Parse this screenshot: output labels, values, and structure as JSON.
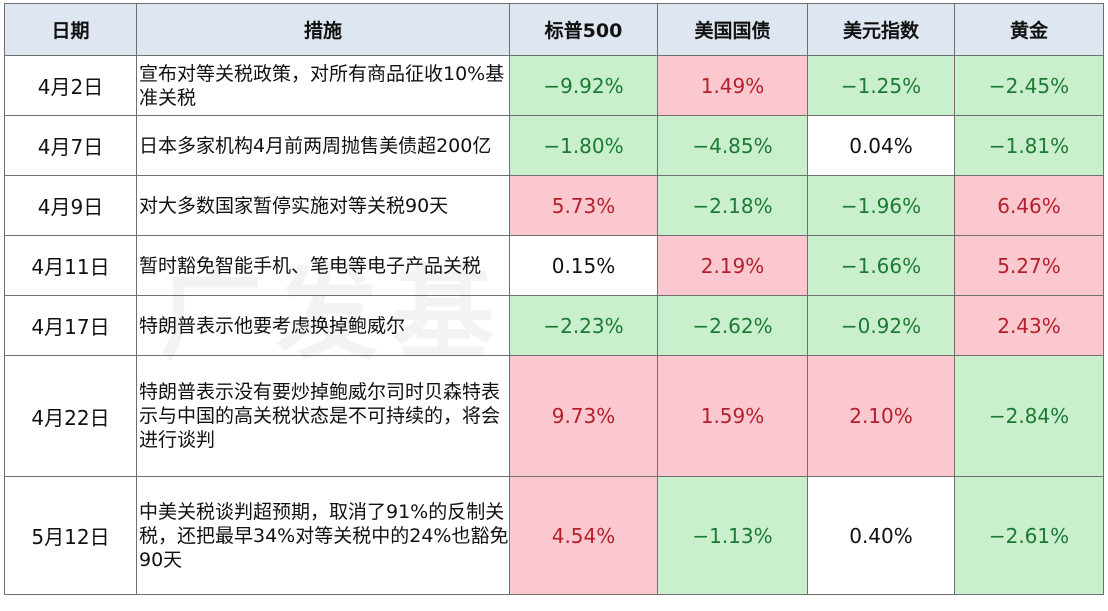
{
  "colors": {
    "header_bg": "#dde6f1",
    "positive_bg": "#fcc8cf",
    "positive_text": "#b3202c",
    "negative_bg": "#c9efcd",
    "negative_text": "#1c7a34"
  },
  "watermark": "广发基金投顾",
  "headers": [
    "日期",
    "措施",
    "标普500",
    "美国国债",
    "美元指数",
    "黄金"
  ],
  "rows": [
    {
      "date": "4月2日",
      "measure": "宣布对等关税政策，对所有商品征收10%基准关税",
      "values": [
        "−9.92%",
        "1.49%",
        "−1.25%",
        "−2.45%"
      ],
      "signs": [
        "neg",
        "pos",
        "neg",
        "neg"
      ]
    },
    {
      "date": "4月7日",
      "measure": "日本多家机构4月前两周抛售美债超200亿",
      "values": [
        "−1.80%",
        "−4.85%",
        "0.04%",
        "−1.81%"
      ],
      "signs": [
        "neg",
        "neg",
        "neu",
        "neg"
      ]
    },
    {
      "date": "4月9日",
      "measure": "对大多数国家暂停实施对等关税90天",
      "values": [
        "5.73%",
        "−2.18%",
        "−1.96%",
        "6.46%"
      ],
      "signs": [
        "pos",
        "neg",
        "neg",
        "pos"
      ]
    },
    {
      "date": "4月11日",
      "measure": "暂时豁免智能手机、笔电等电子产品关税",
      "values": [
        "0.15%",
        "2.19%",
        "−1.66%",
        "5.27%"
      ],
      "signs": [
        "neu",
        "pos",
        "neg",
        "pos"
      ]
    },
    {
      "date": "4月17日",
      "measure": "特朗普表示他要考虑换掉鲍威尔",
      "values": [
        "−2.23%",
        "−2.62%",
        "−0.92%",
        "2.43%"
      ],
      "signs": [
        "neg",
        "neg",
        "neg",
        "pos"
      ]
    },
    {
      "date": "4月22日",
      "measure": "特朗普表示没有要炒掉鲍威尔司时贝森特表示与中国的高关税状态是不可持续的，将会进行谈判",
      "values": [
        "9.73%",
        "1.59%",
        "2.10%",
        "−2.84%"
      ],
      "signs": [
        "pos",
        "pos",
        "pos",
        "neg"
      ]
    },
    {
      "date": "5月12日",
      "measure": "中美关税谈判超预期，取消了91%的反制关税，还把最早34%对等关税中的24%也豁免90天",
      "values": [
        "4.54%",
        "−1.13%",
        "0.40%",
        "−2.61%"
      ],
      "signs": [
        "pos",
        "neg",
        "neu",
        "neg"
      ]
    }
  ]
}
